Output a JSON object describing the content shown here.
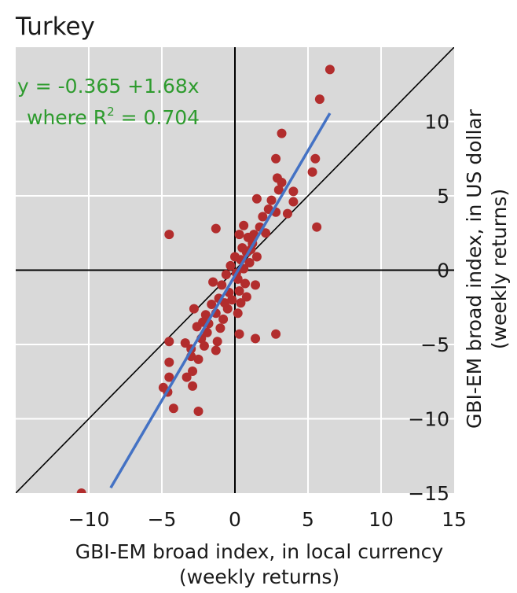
{
  "chart_data": {
    "type": "scatter",
    "title": "Turkey",
    "xlabel": [
      "GBI-EM broad index, in local currency",
      "(weekly returns)"
    ],
    "ylabel": [
      "GBI-EM broad index, in US dollar",
      "(weekly returns)"
    ],
    "xlim": [
      -15,
      15
    ],
    "ylim": [
      -15,
      15
    ],
    "x_ticks": [
      -10,
      -5,
      0,
      5,
      10,
      15
    ],
    "x_tick_labels": [
      "−10",
      "−5",
      "0",
      "5",
      "10",
      "15"
    ],
    "y_ticks": [
      10,
      5,
      0,
      -5,
      -10,
      -15
    ],
    "y_tick_labels": [
      "10",
      "5",
      "0",
      "−5",
      "−10",
      "−15"
    ],
    "y_axis_side": "right",
    "grid": true,
    "background": "#d9d9d9",
    "annotation": {
      "line1": "y = -0.365 +1.68x",
      "line2_prefix": "where R",
      "line2_sup": "2",
      "line2_suffix": " = 0.704"
    },
    "fit_line": {
      "intercept": -0.365,
      "slope": 1.68,
      "x_range": [
        -8.5,
        6.5
      ],
      "color": "#4472c4"
    },
    "reference_line": {
      "slope": 1,
      "intercept": 0,
      "color": "#000000"
    },
    "marker_color": "#b22d2d",
    "points": [
      [
        6.5,
        13.5
      ],
      [
        5.8,
        11.5
      ],
      [
        3.2,
        9.2
      ],
      [
        5.5,
        7.5
      ],
      [
        5.3,
        6.6
      ],
      [
        2.8,
        7.5
      ],
      [
        2.9,
        6.2
      ],
      [
        3.2,
        5.9
      ],
      [
        3.0,
        5.4
      ],
      [
        4.0,
        5.3
      ],
      [
        4.0,
        4.6
      ],
      [
        2.5,
        4.7
      ],
      [
        1.5,
        4.8
      ],
      [
        2.8,
        3.9
      ],
      [
        3.6,
        3.8
      ],
      [
        5.6,
        2.9
      ],
      [
        -4.5,
        2.4
      ],
      [
        -1.3,
        2.8
      ],
      [
        0.6,
        3.0
      ],
      [
        1.7,
        2.9
      ],
      [
        2.1,
        2.5
      ],
      [
        0.3,
        2.4
      ],
      [
        1.2,
        1.8
      ],
      [
        0.8,
        1.2
      ],
      [
        0.4,
        0.7
      ],
      [
        1.5,
        0.9
      ],
      [
        -0.3,
        0.3
      ],
      [
        0.6,
        0.1
      ],
      [
        1.0,
        0.5
      ],
      [
        -0.6,
        -0.3
      ],
      [
        0.2,
        -0.6
      ],
      [
        1.4,
        -1.0
      ],
      [
        -0.9,
        -1.0
      ],
      [
        0.3,
        -1.4
      ],
      [
        -1.5,
        -0.8
      ],
      [
        -0.2,
        -2.0
      ],
      [
        -1.1,
        -1.9
      ],
      [
        0.8,
        -1.8
      ],
      [
        -0.5,
        -2.6
      ],
      [
        -1.6,
        -2.3
      ],
      [
        0.2,
        -2.9
      ],
      [
        -1.3,
        -2.9
      ],
      [
        -2.0,
        -3.0
      ],
      [
        -2.8,
        -2.6
      ],
      [
        -0.8,
        -3.3
      ],
      [
        -2.6,
        -3.8
      ],
      [
        -1.0,
        -3.9
      ],
      [
        -1.9,
        -4.2
      ],
      [
        -2.3,
        -4.6
      ],
      [
        -3.4,
        -4.9
      ],
      [
        -1.2,
        -4.8
      ],
      [
        0.3,
        -4.3
      ],
      [
        1.4,
        -4.6
      ],
      [
        2.8,
        -4.3
      ],
      [
        -2.1,
        -5.1
      ],
      [
        -3.0,
        -5.3
      ],
      [
        -1.3,
        -5.4
      ],
      [
        -2.5,
        -6.0
      ],
      [
        -3.0,
        -5.8
      ],
      [
        -4.5,
        -4.8
      ],
      [
        -4.5,
        -6.2
      ],
      [
        -2.9,
        -6.8
      ],
      [
        -3.3,
        -7.2
      ],
      [
        -4.5,
        -7.2
      ],
      [
        -4.6,
        -8.2
      ],
      [
        -2.9,
        -7.8
      ],
      [
        -4.9,
        -7.9
      ],
      [
        -2.5,
        -9.5
      ],
      [
        -4.2,
        -9.3
      ],
      [
        -10.5,
        -15.0
      ],
      [
        0.5,
        1.5
      ],
      [
        0.9,
        2.2
      ],
      [
        0.1,
        -0.2
      ],
      [
        -0.4,
        -1.5
      ],
      [
        0.7,
        -0.9
      ],
      [
        1.1,
        1.4
      ],
      [
        -0.7,
        -2.2
      ],
      [
        0.0,
        0.9
      ],
      [
        1.9,
        3.6
      ],
      [
        -1.8,
        -3.6
      ],
      [
        2.3,
        4.1
      ],
      [
        -2.2,
        -3.5
      ],
      [
        0.4,
        -2.2
      ],
      [
        1.3,
        2.4
      ]
    ]
  }
}
